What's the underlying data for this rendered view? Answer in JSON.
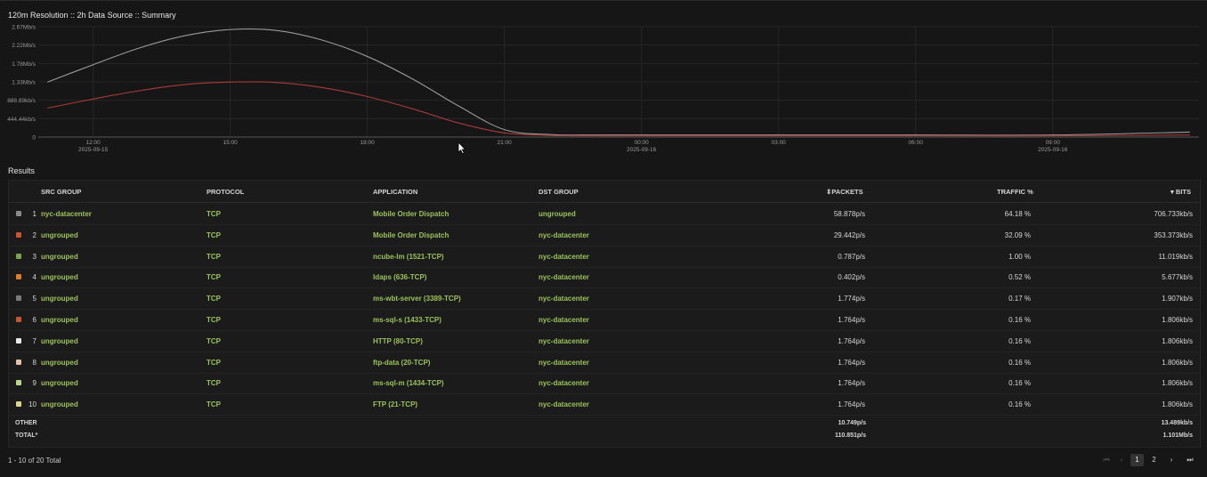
{
  "chart_title": "120m Resolution :: 2h Data Source :: Summary",
  "chart_data": {
    "type": "line",
    "y_ticks": [
      "2.67Mb/s",
      "2.22Mb/s",
      "1.78Mb/s",
      "1.33Mb/s",
      "888.89kb/s",
      "444.44kb/s",
      "0"
    ],
    "x_ticks": [
      {
        "time": "12:00",
        "date": "2025-09-15"
      },
      {
        "time": "15:00",
        "date": ""
      },
      {
        "time": "18:00",
        "date": ""
      },
      {
        "time": "21:00",
        "date": ""
      },
      {
        "time": "00:00",
        "date": "2025-09-16"
      },
      {
        "time": "03:00",
        "date": ""
      },
      {
        "time": "06:00",
        "date": ""
      },
      {
        "time": "09:00",
        "date": "2025-09-16"
      }
    ],
    "ylim_mbps": [
      0,
      2.67
    ],
    "x_hours": [
      11,
      12,
      13,
      14,
      15,
      16,
      17,
      18,
      19,
      20,
      21,
      22,
      23,
      24,
      27,
      30,
      33,
      36
    ],
    "series": [
      {
        "color": "#9a9a9a",
        "values_mbps": [
          1.33,
          1.75,
          2.15,
          2.45,
          2.6,
          2.58,
          2.35,
          1.95,
          1.4,
          0.75,
          0.18,
          0.06,
          0.05,
          0.05,
          0.05,
          0.05,
          0.05,
          0.12
        ]
      },
      {
        "color": "#a83a3a",
        "values_mbps": [
          0.7,
          0.92,
          1.12,
          1.27,
          1.33,
          1.32,
          1.2,
          0.98,
          0.68,
          0.34,
          0.1,
          0.04,
          0.03,
          0.03,
          0.03,
          0.03,
          0.03,
          0.05
        ]
      }
    ],
    "grid": true
  },
  "results_title": "Results",
  "columns": {
    "src_group": "SRC GROUP",
    "protocol": "PROTOCOL",
    "application": "APPLICATION",
    "dst_group": "DST GROUP",
    "packets": "PACKETS",
    "traffic": "TRAFFIC %",
    "bits": "BITS"
  },
  "rows": [
    {
      "idx": "1",
      "color": "#8a8a8a",
      "src": "nyc-datacenter",
      "proto": "TCP",
      "app": "Mobile Order Dispatch",
      "dst": "ungrouped",
      "packets": "58.878p/s",
      "traffic": "64.18 %",
      "bits": "706.733kb/s"
    },
    {
      "idx": "2",
      "color": "#c8552e",
      "src": "ungrouped",
      "proto": "TCP",
      "app": "Mobile Order Dispatch",
      "dst": "nyc-datacenter",
      "packets": "29.442p/s",
      "traffic": "32.09 %",
      "bits": "353.373kb/s"
    },
    {
      "idx": "3",
      "color": "#7aa34a",
      "src": "ungrouped",
      "proto": "TCP",
      "app": "ncube-lm (1521-TCP)",
      "dst": "nyc-datacenter",
      "packets": "0.787p/s",
      "traffic": "1.00 %",
      "bits": "11.019kb/s"
    },
    {
      "idx": "4",
      "color": "#e07b2a",
      "src": "ungrouped",
      "proto": "TCP",
      "app": "ldaps (636-TCP)",
      "dst": "nyc-datacenter",
      "packets": "0.402p/s",
      "traffic": "0.52 %",
      "bits": "5.677kb/s"
    },
    {
      "idx": "5",
      "color": "#7a7a7a",
      "src": "ungrouped",
      "proto": "TCP",
      "app": "ms-wbt-server (3389-TCP)",
      "dst": "nyc-datacenter",
      "packets": "1.774p/s",
      "traffic": "0.17 %",
      "bits": "1.907kb/s"
    },
    {
      "idx": "6",
      "color": "#c8552e",
      "src": "ungrouped",
      "proto": "TCP",
      "app": "ms-sql-s (1433-TCP)",
      "dst": "nyc-datacenter",
      "packets": "1.764p/s",
      "traffic": "0.16 %",
      "bits": "1.806kb/s"
    },
    {
      "idx": "7",
      "color": "#e8e8e8",
      "src": "ungrouped",
      "proto": "TCP",
      "app": "HTTP (80-TCP)",
      "dst": "nyc-datacenter",
      "packets": "1.764p/s",
      "traffic": "0.16 %",
      "bits": "1.806kb/s"
    },
    {
      "idx": "8",
      "color": "#e6c0a8",
      "src": "ungrouped",
      "proto": "TCP",
      "app": "ftp-data (20-TCP)",
      "dst": "nyc-datacenter",
      "packets": "1.764p/s",
      "traffic": "0.16 %",
      "bits": "1.806kb/s"
    },
    {
      "idx": "9",
      "color": "#b8d88a",
      "src": "ungrouped",
      "proto": "TCP",
      "app": "ms-sql-m (1434-TCP)",
      "dst": "nyc-datacenter",
      "packets": "1.764p/s",
      "traffic": "0.16 %",
      "bits": "1.806kb/s"
    },
    {
      "idx": "10",
      "color": "#e0d48a",
      "src": "ungrouped",
      "proto": "TCP",
      "app": "FTP (21-TCP)",
      "dst": "nyc-datacenter",
      "packets": "1.764p/s",
      "traffic": "0.16 %",
      "bits": "1.806kb/s"
    }
  ],
  "other": {
    "label": "OTHER",
    "packets": "10.749p/s",
    "bits": "13.489kb/s"
  },
  "total": {
    "label": "TOTAL*",
    "packets": "110.851p/s",
    "bits": "1.101Mb/s"
  },
  "pagination": {
    "info": "1 - 10 of 20 Total",
    "pages": [
      "1",
      "2"
    ],
    "current": "1"
  },
  "colors": {
    "link_green": "#9cc25a",
    "background": "#161616"
  }
}
